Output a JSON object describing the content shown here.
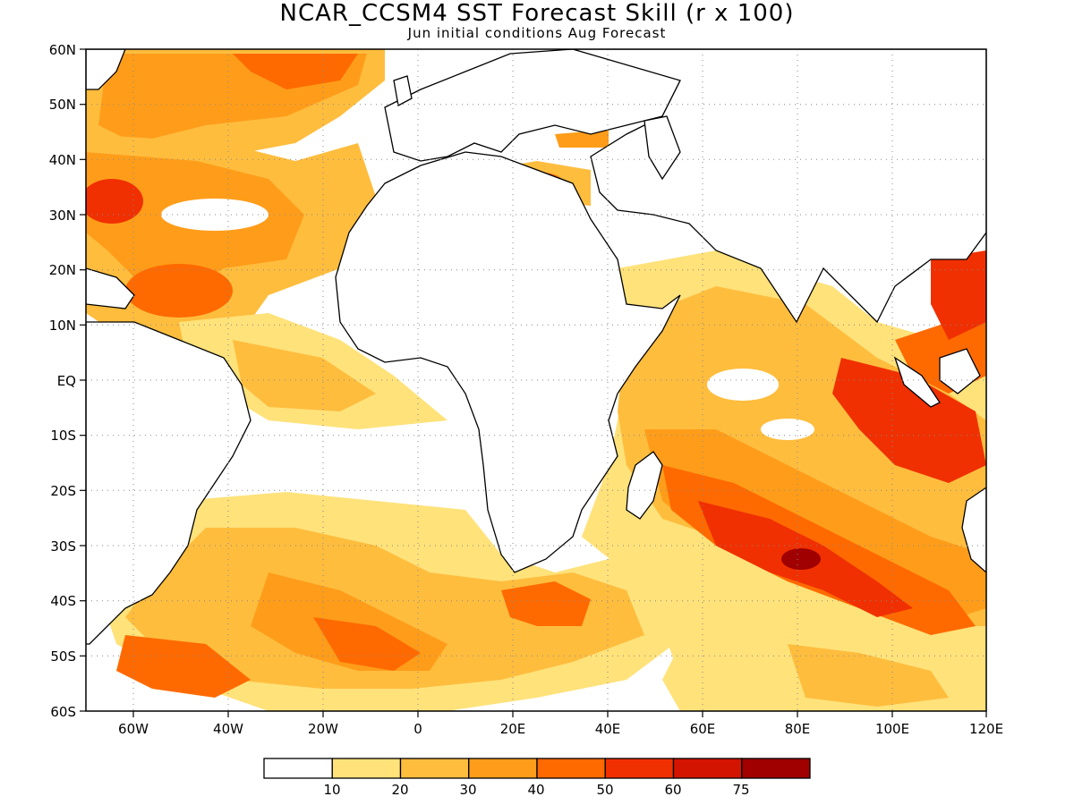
{
  "title": "NCAR_CCSM4 SST Forecast Skill (r x 100)",
  "subtitle": "Jun initial conditions  Aug Forecast",
  "map": {
    "lat_labels": [
      "60N",
      "50N",
      "40N",
      "30N",
      "20N",
      "10N",
      "EQ",
      "10S",
      "20S",
      "30S",
      "40S",
      "50S",
      "60S"
    ],
    "lon_labels": [
      "60W",
      "40W",
      "20W",
      "0",
      "20E",
      "40E",
      "60E",
      "80E",
      "100E",
      "120E"
    ]
  },
  "colorbar": {
    "colors": [
      "#ffffff",
      "#ffe27a",
      "#ffbd3e",
      "#ff9d1a",
      "#ff6a00",
      "#f03000",
      "#d21400",
      "#a00000"
    ],
    "labels": [
      "10",
      "20",
      "30",
      "40",
      "50",
      "60",
      "75"
    ]
  }
}
